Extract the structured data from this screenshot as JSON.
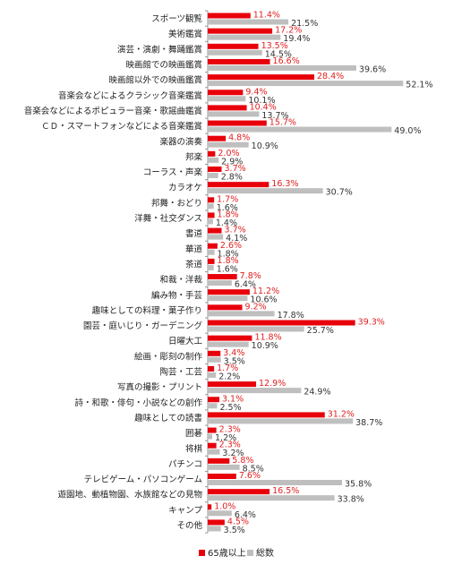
{
  "chart_data": {
    "type": "bar",
    "orientation": "horizontal",
    "categories": [
      "スポーツ観覧",
      "美術鑑賞",
      "演芸・演劇・舞踊鑑賞",
      "映画館での映画鑑賞",
      "映画館以外での映画鑑賞",
      "音楽会などによるクラシック音楽鑑賞",
      "音楽会などによるポピュラー音楽・歌謡曲鑑賞",
      "ＣＤ・スマートフォンなどによる音楽鑑賞",
      "楽器の演奏",
      "邦楽",
      "コーラス・声楽",
      "カラオケ",
      "邦舞・おどり",
      "洋舞・社交ダンス",
      "書道",
      "華道",
      "茶道",
      "和裁・洋裁",
      "編み物・手芸",
      "趣味としての料理・菓子作り",
      "園芸・庭いじり・ガーデニング",
      "日曜大工",
      "絵画・彫刻の制作",
      "陶芸・工芸",
      "写真の撮影・プリント",
      "詩・和歌・俳句・小説などの創作",
      "趣味としての読書",
      "囲碁",
      "将棋",
      "パチンコ",
      "テレビゲーム・パソコンゲーム",
      "遊園地、動植物園、水族館などの見物",
      "キャンプ",
      "その他"
    ],
    "series": [
      {
        "name": "65歳以上",
        "color": "#e8000b",
        "values": [
          11.4,
          17.2,
          13.5,
          16.6,
          28.4,
          9.4,
          10.4,
          15.7,
          4.8,
          2.0,
          3.7,
          16.3,
          1.7,
          1.8,
          3.7,
          2.6,
          1.8,
          7.8,
          11.2,
          9.2,
          39.3,
          11.8,
          3.4,
          1.7,
          12.9,
          3.1,
          31.2,
          2.3,
          2.3,
          5.8,
          7.6,
          16.5,
          1.0,
          4.5
        ],
        "labels": [
          "11.4%",
          "17.2%",
          "13.5%",
          "16.6%",
          "28.4%",
          "9.4%",
          "10.4%",
          "15.7%",
          "4.8%",
          "2.0%",
          "3.7%",
          "16.3%",
          "1.7%",
          "1.8%",
          "3.7%",
          "2.6%",
          "1.8%",
          "7.8%",
          "11.2%",
          "9.2%",
          "39.3%",
          "11.8%",
          "3.4%",
          "1.7%",
          "12.9%",
          "3.1%",
          "31.2%",
          "2.3%",
          "2.3%",
          "5.8%",
          "7.6%",
          "16.5%",
          "1.0%",
          "4.5%"
        ]
      },
      {
        "name": "総数",
        "color": "#bfbfbf",
        "values": [
          21.5,
          19.4,
          14.5,
          39.6,
          52.1,
          10.1,
          13.7,
          49.0,
          10.9,
          2.9,
          2.8,
          30.7,
          1.6,
          1.4,
          4.1,
          1.8,
          1.6,
          6.4,
          10.6,
          17.8,
          25.7,
          10.9,
          3.5,
          2.2,
          24.9,
          2.5,
          38.7,
          1.2,
          3.2,
          8.5,
          35.8,
          33.8,
          6.4,
          3.5
        ],
        "labels": [
          "21.5%",
          "19.4%",
          "14.5%",
          "39.6%",
          "52.1%",
          "10.1%",
          "13.7%",
          "49.0%",
          "10.9%",
          "2.9%",
          "2.8%",
          "30.7%",
          "1.6%",
          "1.4%",
          "4.1%",
          "1.8%",
          "1.6%",
          "6.4%",
          "10.6%",
          "17.8%",
          "25.7%",
          "10.9%",
          "3.5%",
          "2.2%",
          "24.9%",
          "2.5%",
          "38.7%",
          "1.2%",
          "3.2%",
          "8.5%",
          "35.8%",
          "33.8%",
          "6.4%",
          "3.5%"
        ]
      }
    ],
    "xlim": [
      0,
      60
    ],
    "legend_position": "bottom-center",
    "grid": false
  }
}
